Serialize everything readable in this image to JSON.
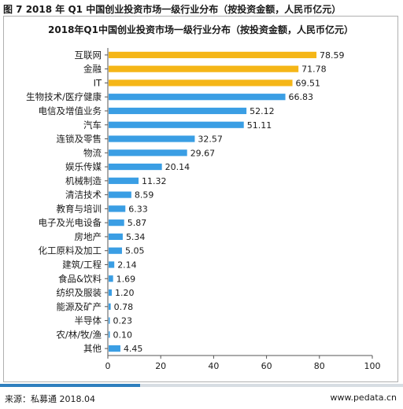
{
  "figure_title": "图 7 2018 年 Q1 中国创业投资市场一级行业分布（按投资金额，人民币亿元）",
  "footer": {
    "source": "来源：私募通 2018.04",
    "site": "www.pedata.cn"
  },
  "chart_data": {
    "type": "bar",
    "orientation": "horizontal",
    "title": "2018年Q1中国创业投资市场一级行业分布（按投资金额，人民币亿元）",
    "categories": [
      "互联网",
      "金融",
      "IT",
      "生物技术/医疗健康",
      "电信及增值业务",
      "汽车",
      "连锁及零售",
      "物流",
      "娱乐传媒",
      "机械制造",
      "清洁技术",
      "教育与培训",
      "电子及光电设备",
      "房地产",
      "化工原料及加工",
      "建筑/工程",
      "食品&饮料",
      "纺织及服装",
      "能源及矿产",
      "半导体",
      "农/林/牧/渔",
      "其他"
    ],
    "values": [
      78.59,
      71.78,
      69.51,
      66.83,
      52.12,
      51.11,
      32.57,
      29.67,
      20.14,
      11.32,
      8.59,
      6.33,
      5.87,
      5.34,
      5.05,
      2.14,
      1.69,
      1.2,
      0.78,
      0.23,
      0.1,
      4.45
    ],
    "value_labels": [
      "78.59",
      "71.78",
      "69.51",
      "66.83",
      "52.12",
      "51.11",
      "32.57",
      "29.67",
      "20.14",
      "11.32",
      "8.59",
      "6.33",
      "5.87",
      "5.34",
      "5.05",
      "2.14",
      "1.69",
      "1.20",
      "0.78",
      "0.23",
      "0.10",
      "4.45"
    ],
    "highlight_count": 3,
    "colors": {
      "highlight": "#f5b617",
      "normal": "#3a9ee4",
      "axis": "#555555"
    },
    "xlim": [
      0,
      100
    ],
    "xticks": [
      0,
      20,
      40,
      60,
      80,
      100
    ],
    "grid": false,
    "legend": "none"
  }
}
